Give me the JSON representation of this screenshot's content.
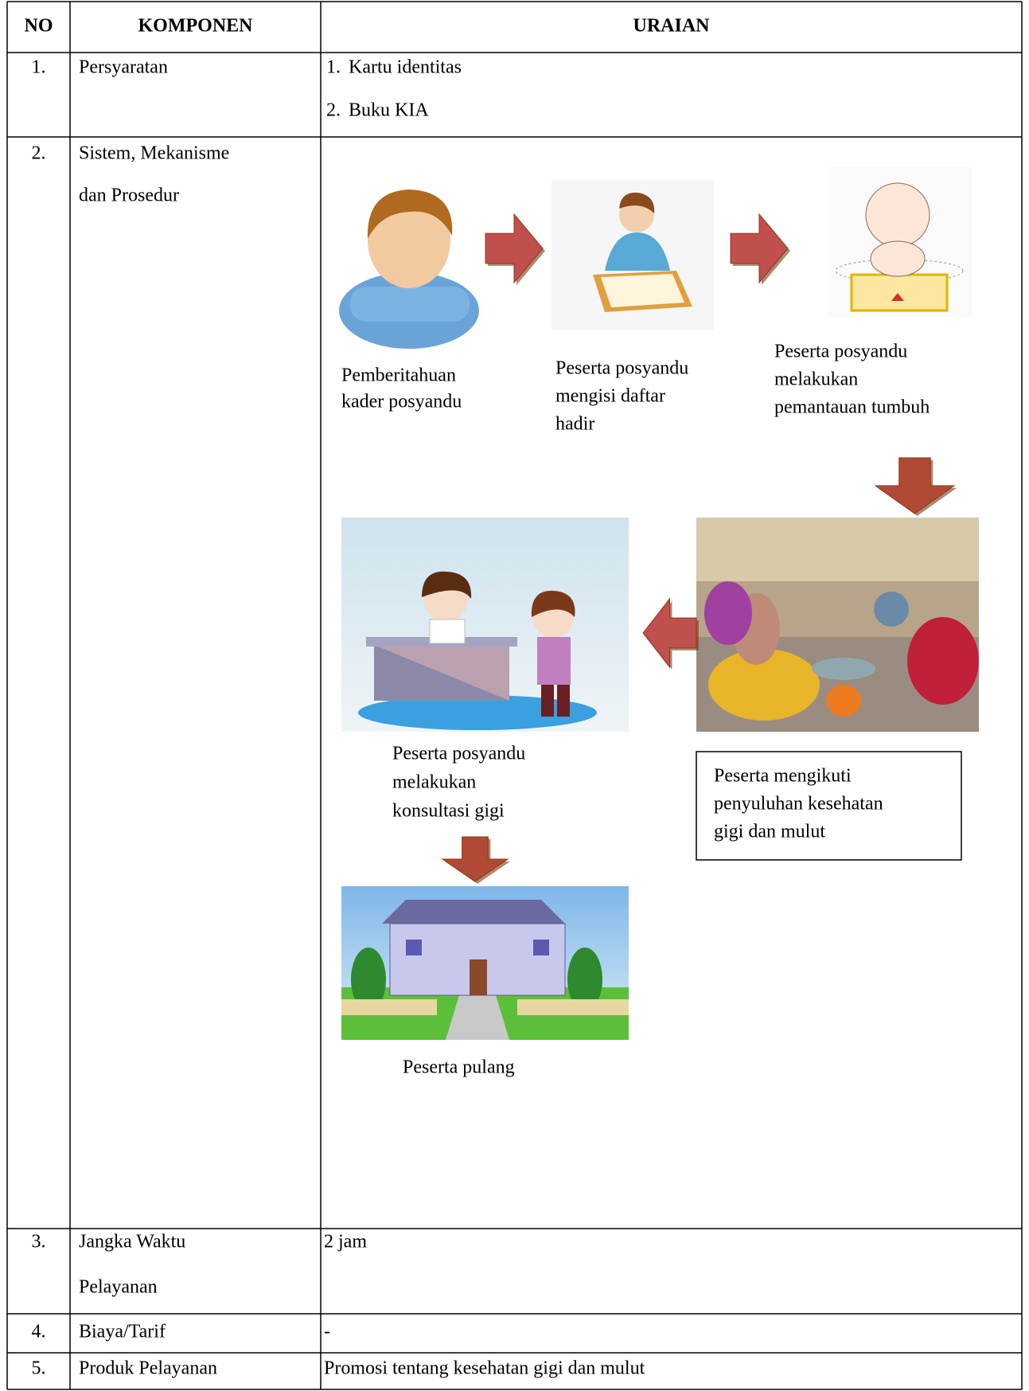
{
  "table": {
    "headers": [
      "NO",
      "KOMPONEN",
      "URAIAN"
    ],
    "rows": [
      {
        "no": "1.",
        "component": [
          "Persyaratan"
        ],
        "description": [
          {
            "num": "1.",
            "text": "Kartu identitas"
          },
          {
            "num": "2.",
            "text": "Buku KIA"
          }
        ]
      },
      {
        "no": "2.",
        "component": [
          "Sistem, Mekanisme",
          "dan Prosedur"
        ],
        "flow": {
          "steps": [
            {
              "label": [
                "Pemberitahuan",
                "kader posyandu"
              ]
            },
            {
              "label": [
                "Peserta posyandu",
                "mengisi daftar",
                "hadir"
              ]
            },
            {
              "label": [
                "Peserta posyandu",
                "melakukan",
                "pemantauan tumbuh"
              ]
            },
            {
              "label": [
                "Peserta mengikuti",
                "penyuluhan kesehatan",
                "gigi dan mulut"
              ]
            },
            {
              "label": [
                "Peserta posyandu",
                "melakukan",
                "konsultasi gigi"
              ]
            },
            {
              "label": [
                "Peserta pulang"
              ]
            }
          ]
        }
      },
      {
        "no": "3.",
        "component": [
          "Jangka Waktu",
          "Pelayanan"
        ],
        "description": [
          {
            "text": "2 jam"
          }
        ]
      },
      {
        "no": "4.",
        "component": [
          "Biaya/Tarif"
        ],
        "description": [
          {
            "text": "-"
          }
        ]
      },
      {
        "no": "5.",
        "component": [
          "Produk Pelayanan"
        ],
        "description": [
          {
            "text": "Promosi tentang kesehatan gigi dan mulut"
          }
        ]
      }
    ]
  }
}
